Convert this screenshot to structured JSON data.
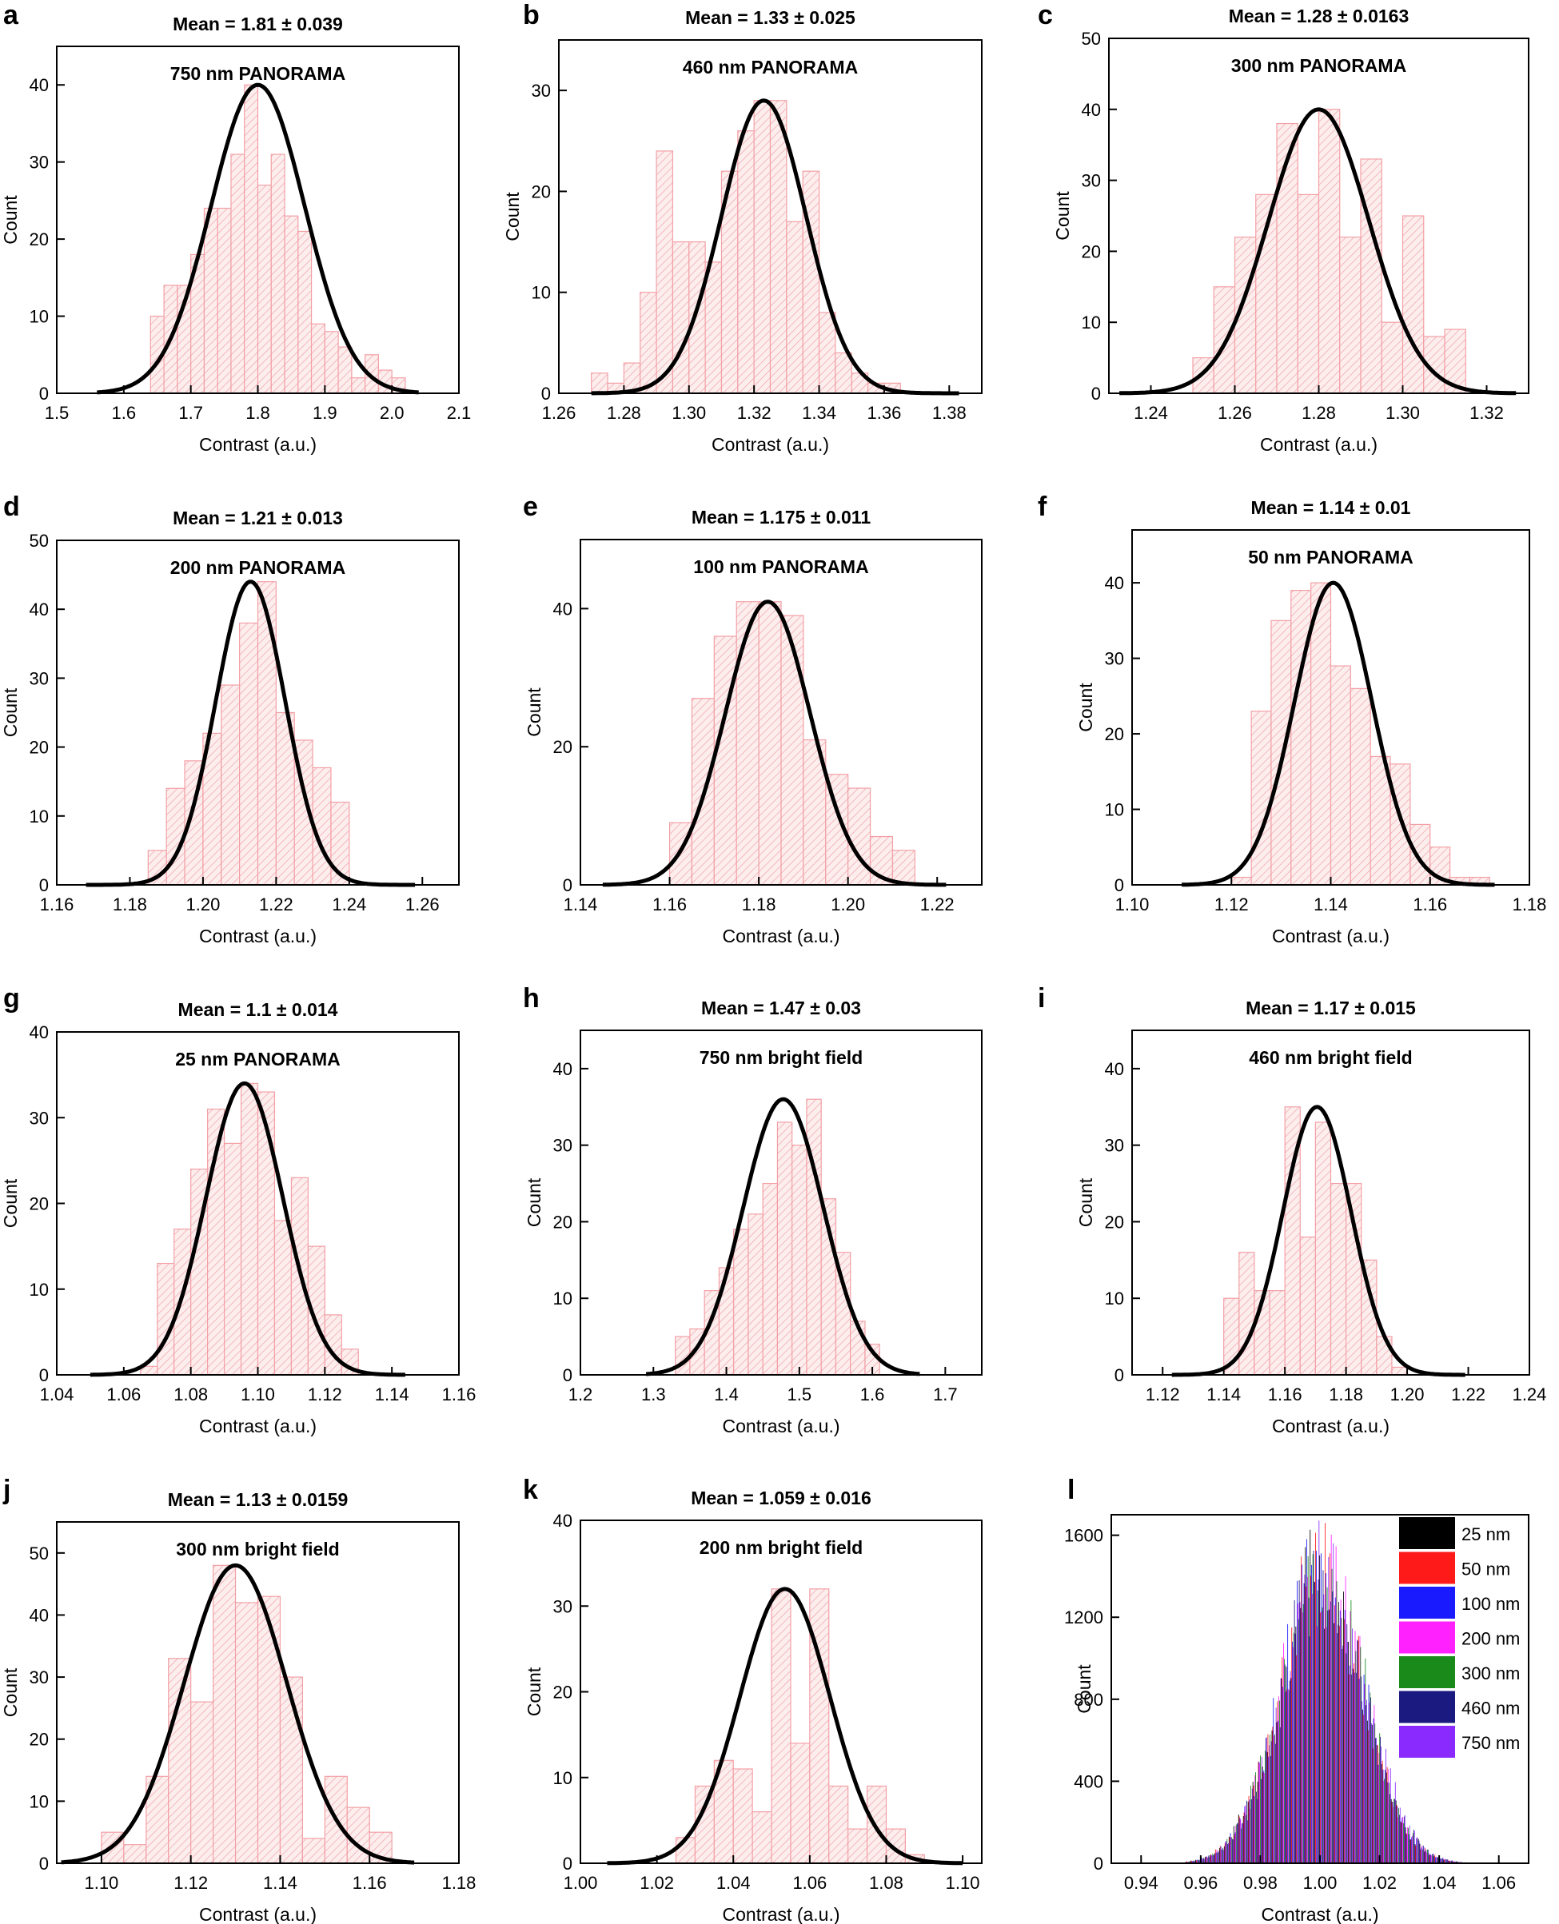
{
  "colors": {
    "bars": "#f2a0a6",
    "hatch": "#f0a0a8",
    "curve": "#000000",
    "axis": "#000000"
  },
  "chart_data": [
    {
      "id": "a",
      "panel_label": "a",
      "type": "bar",
      "title": "Mean = 1.81 ± 0.039",
      "subtitle": "750 nm PANORAMA",
      "xlabel": "Contrast (a.u.)",
      "ylabel": "Count",
      "xlim": [
        1.5,
        2.1
      ],
      "ylim": [
        0,
        45
      ],
      "xticks": [
        1.5,
        1.6,
        1.7,
        1.8,
        1.9,
        2.0,
        2.1
      ],
      "yticks": [
        0,
        10,
        20,
        30,
        40
      ],
      "bin_width": 0.02,
      "bin_centers": [
        1.65,
        1.67,
        1.69,
        1.71,
        1.73,
        1.75,
        1.77,
        1.79,
        1.81,
        1.83,
        1.85,
        1.87,
        1.89,
        1.91,
        1.93,
        1.95,
        1.97,
        1.99,
        2.01
      ],
      "values": [
        10,
        14,
        14,
        18,
        24,
        24,
        31,
        40,
        27,
        31,
        23,
        21,
        9,
        8,
        6,
        2,
        5,
        3,
        2
      ],
      "fit": {
        "mean": 1.8,
        "amplitude": 40,
        "sigma": 0.07,
        "xmin": 1.56,
        "xmax": 2.04
      }
    },
    {
      "id": "b",
      "panel_label": "b",
      "type": "bar",
      "title": "Mean = 1.33 ± 0.025",
      "subtitle": "460 nm PANORAMA",
      "xlabel": "Contrast (a.u.)",
      "ylabel": "Count",
      "xlim": [
        1.26,
        1.39
      ],
      "ylim": [
        0,
        35
      ],
      "xticks": [
        1.26,
        1.28,
        1.3,
        1.32,
        1.34,
        1.36,
        1.38
      ],
      "yticks": [
        0,
        10,
        20,
        30
      ],
      "bin_width": 0.005,
      "bin_centers": [
        1.2725,
        1.2775,
        1.2825,
        1.2875,
        1.2925,
        1.2975,
        1.3025,
        1.3075,
        1.3125,
        1.3175,
        1.3225,
        1.3275,
        1.3325,
        1.3375,
        1.3425,
        1.3475,
        1.3525,
        1.3575,
        1.3625
      ],
      "values": [
        2,
        1,
        3,
        10,
        24,
        15,
        15,
        13,
        22,
        26,
        29,
        29,
        17,
        22,
        8,
        4,
        2,
        1,
        1
      ],
      "fit": {
        "mean": 1.323,
        "amplitude": 29,
        "sigma": 0.013,
        "xmin": 1.27,
        "xmax": 1.383
      }
    },
    {
      "id": "c",
      "panel_label": "c",
      "type": "bar",
      "title": "Mean = 1.28 ± 0.0163",
      "subtitle": "300 nm PANORAMA",
      "xlabel": "Contrast (a.u.)",
      "ylabel": "Count",
      "xlim": [
        1.23,
        1.33
      ],
      "ylim": [
        0,
        50
      ],
      "xticks": [
        1.24,
        1.26,
        1.28,
        1.3,
        1.32
      ],
      "yticks": [
        0,
        10,
        20,
        30,
        40,
        50
      ],
      "bin_width": 0.005,
      "bin_centers": [
        1.2525,
        1.2575,
        1.2625,
        1.2675,
        1.2725,
        1.2775,
        1.2825,
        1.2875,
        1.2925,
        1.2975,
        1.3025,
        1.3075,
        1.3125
      ],
      "values": [
        5,
        15,
        22,
        28,
        38,
        28,
        40,
        22,
        33,
        10,
        25,
        8,
        9
      ],
      "fit": {
        "mean": 1.28,
        "amplitude": 40,
        "sigma": 0.012,
        "xmin": 1.2325,
        "xmax": 1.327
      }
    },
    {
      "id": "d",
      "panel_label": "d",
      "type": "bar",
      "title": "Mean = 1.21 ± 0.013",
      "subtitle": "200 nm PANORAMA",
      "xlabel": "Contrast (a.u.)",
      "ylabel": "Count",
      "xlim": [
        1.16,
        1.27
      ],
      "ylim": [
        0,
        50
      ],
      "xticks": [
        1.16,
        1.18,
        1.2,
        1.22,
        1.24,
        1.26
      ],
      "yticks": [
        0,
        10,
        20,
        30,
        40,
        50
      ],
      "bin_width": 0.005,
      "bin_centers": [
        1.1875,
        1.1925,
        1.1975,
        1.2025,
        1.2075,
        1.2125,
        1.2175,
        1.2225,
        1.2275,
        1.2325,
        1.2375
      ],
      "values": [
        5,
        14,
        18,
        22,
        29,
        38,
        44,
        25,
        21,
        17,
        12
      ],
      "fit": {
        "mean": 1.213,
        "amplitude": 44,
        "sigma": 0.0095,
        "xmin": 1.168,
        "xmax": 1.258
      }
    },
    {
      "id": "e",
      "panel_label": "e",
      "type": "bar",
      "title": "Mean = 1.175 ± 0.011",
      "subtitle": "100 nm PANORAMA",
      "xlabel": "Contrast (a.u.)",
      "ylabel": "Count",
      "xlim": [
        1.14,
        1.23
      ],
      "ylim": [
        0,
        50
      ],
      "xticks": [
        1.14,
        1.16,
        1.18,
        1.2,
        1.22
      ],
      "yticks": [
        0,
        20,
        40
      ],
      "bin_width": 0.005,
      "bin_centers": [
        1.1625,
        1.1675,
        1.1725,
        1.1775,
        1.1825,
        1.1875,
        1.1925,
        1.1975,
        1.2025,
        1.2075,
        1.2125
      ],
      "values": [
        9,
        27,
        36,
        41,
        41,
        39,
        21,
        16,
        14,
        7,
        5
      ],
      "fit": {
        "mean": 1.182,
        "amplitude": 41,
        "sigma": 0.0095,
        "xmin": 1.145,
        "xmax": 1.222
      }
    },
    {
      "id": "f",
      "panel_label": "f",
      "type": "bar",
      "title": "Mean = 1.14 ± 0.01",
      "subtitle": "50 nm PANORAMA",
      "xlabel": "Contrast (a.u.)",
      "ylabel": "Count",
      "xlim": [
        1.1,
        1.18
      ],
      "ylim": [
        0,
        47
      ],
      "xticks": [
        1.1,
        1.12,
        1.14,
        1.16,
        1.18
      ],
      "yticks": [
        0,
        10,
        20,
        30,
        40
      ],
      "bin_width": 0.004,
      "bin_centers": [
        1.122,
        1.126,
        1.13,
        1.134,
        1.138,
        1.142,
        1.146,
        1.15,
        1.154,
        1.158,
        1.162,
        1.166,
        1.17
      ],
      "values": [
        1,
        23,
        35,
        39,
        40,
        29,
        26,
        17,
        16,
        8,
        5,
        1,
        1
      ],
      "fit": {
        "mean": 1.1405,
        "amplitude": 40,
        "sigma": 0.0078,
        "xmin": 1.11,
        "xmax": 1.173
      }
    },
    {
      "id": "g",
      "panel_label": "g",
      "type": "bar",
      "title": "Mean = 1.1 ± 0.014",
      "subtitle": "25 nm PANORAMA",
      "xlabel": "Contrast (a.u.)",
      "ylabel": "Count",
      "xlim": [
        1.04,
        1.16
      ],
      "ylim": [
        0,
        40
      ],
      "xticks": [
        1.04,
        1.06,
        1.08,
        1.1,
        1.12,
        1.14,
        1.16
      ],
      "yticks": [
        0,
        10,
        20,
        30,
        40
      ],
      "bin_width": 0.005,
      "bin_centers": [
        1.0675,
        1.0725,
        1.0775,
        1.0825,
        1.0875,
        1.0925,
        1.0975,
        1.1025,
        1.1075,
        1.1125,
        1.1175,
        1.1225,
        1.1275
      ],
      "values": [
        1,
        13,
        17,
        24,
        31,
        27,
        34,
        33,
        18,
        23,
        15,
        7,
        3
      ],
      "fit": {
        "mean": 1.096,
        "amplitude": 34,
        "sigma": 0.0115,
        "xmin": 1.05,
        "xmax": 1.144
      }
    },
    {
      "id": "h",
      "panel_label": "h",
      "type": "bar",
      "title": "Mean = 1.47 ± 0.03",
      "subtitle": "750 nm bright field",
      "xlabel": "Contrast (a.u.)",
      "ylabel": "Count",
      "xlim": [
        1.2,
        1.75
      ],
      "ylim": [
        0,
        45
      ],
      "xticks": [
        1.2,
        1.3,
        1.4,
        1.5,
        1.6,
        1.7
      ],
      "yticks": [
        0,
        10,
        20,
        30,
        40
      ],
      "bin_width": 0.02,
      "bin_centers": [
        1.34,
        1.36,
        1.38,
        1.4,
        1.42,
        1.44,
        1.46,
        1.48,
        1.5,
        1.52,
        1.54,
        1.56,
        1.58,
        1.6
      ],
      "values": [
        5,
        6,
        11,
        14,
        19,
        21,
        25,
        33,
        30,
        36,
        23,
        16,
        7,
        4
      ],
      "fit": {
        "mean": 1.478,
        "amplitude": 36,
        "sigma": 0.055,
        "xmin": 1.29,
        "xmax": 1.665
      }
    },
    {
      "id": "i",
      "panel_label": "i",
      "type": "bar",
      "title": "Mean = 1.17 ± 0.015",
      "subtitle": "460 nm bright field",
      "xlabel": "Contrast (a.u.)",
      "ylabel": "Count",
      "xlim": [
        1.11,
        1.24
      ],
      "ylim": [
        0,
        45
      ],
      "xticks": [
        1.12,
        1.14,
        1.16,
        1.18,
        1.2,
        1.22,
        1.24
      ],
      "yticks": [
        0,
        10,
        20,
        30,
        40
      ],
      "bin_width": 0.005,
      "bin_centers": [
        1.1425,
        1.1475,
        1.1525,
        1.1575,
        1.1625,
        1.1675,
        1.1725,
        1.1775,
        1.1825,
        1.1875,
        1.1925,
        1.1975
      ],
      "values": [
        10,
        16,
        11,
        11,
        35,
        18,
        33,
        25,
        25,
        15,
        5,
        1
      ],
      "fit": {
        "mean": 1.1705,
        "amplitude": 35,
        "sigma": 0.0112,
        "xmin": 1.123,
        "xmax": 1.219
      }
    },
    {
      "id": "j",
      "panel_label": "j",
      "type": "bar",
      "title": "Mean = 1.13 ± 0.0159",
      "subtitle": "300 nm bright field",
      "xlabel": "Contrast (a.u.)",
      "ylabel": "Count",
      "xlim": [
        1.09,
        1.18
      ],
      "ylim": [
        0,
        55
      ],
      "xticks": [
        1.1,
        1.12,
        1.14,
        1.16,
        1.18
      ],
      "yticks": [
        0,
        10,
        20,
        30,
        40,
        50
      ],
      "bin_width": 0.005,
      "bin_centers": [
        1.1025,
        1.1075,
        1.1125,
        1.1175,
        1.1225,
        1.1275,
        1.1325,
        1.1375,
        1.1425,
        1.1475,
        1.1525,
        1.1575,
        1.1625
      ],
      "values": [
        5,
        3,
        14,
        33,
        26,
        48,
        42,
        43,
        30,
        4,
        14,
        9,
        5
      ],
      "fit": {
        "mean": 1.13,
        "amplitude": 48,
        "sigma": 0.0115,
        "xmin": 1.091,
        "xmax": 1.17
      }
    },
    {
      "id": "k",
      "panel_label": "k",
      "type": "bar",
      "title": "Mean = 1.059 ± 0.016",
      "subtitle": "200 nm bright field",
      "xlabel": "Contrast (a.u.)",
      "ylabel": "Count",
      "xlim": [
        1.0,
        1.105
      ],
      "ylim": [
        0,
        40
      ],
      "xticks": [
        1.0,
        1.02,
        1.04,
        1.06,
        1.08,
        1.1
      ],
      "yticks": [
        0,
        10,
        20,
        30,
        40
      ],
      "bin_width": 0.005,
      "bin_centers": [
        1.0275,
        1.0325,
        1.0375,
        1.0425,
        1.0475,
        1.0525,
        1.0575,
        1.0625,
        1.0675,
        1.0725,
        1.0775,
        1.0825,
        1.0875
      ],
      "values": [
        3,
        9,
        12,
        11,
        6,
        32,
        14,
        32,
        9,
        4,
        9,
        4,
        1
      ],
      "fit": {
        "mean": 1.0535,
        "amplitude": 32,
        "sigma": 0.0118,
        "xmin": 1.007,
        "xmax": 1.1
      }
    },
    {
      "id": "l",
      "panel_label": "l",
      "type": "bar",
      "subtitle": "",
      "xlabel": "Contrast (a.u.)",
      "ylabel": "Count",
      "xlim": [
        0.93,
        1.07
      ],
      "ylim": [
        0,
        1700
      ],
      "xticks": [
        0.94,
        0.96,
        0.98,
        1.0,
        1.02,
        1.04,
        1.06
      ],
      "yticks": [
        0,
        400,
        800,
        1200,
        1600
      ],
      "legend": {
        "placement": "top-right",
        "entries": [
          {
            "name": "25 nm",
            "color": "#000000"
          },
          {
            "name": "50 nm",
            "color": "#ff1a1a"
          },
          {
            "name": "100 nm",
            "color": "#1a1aff"
          },
          {
            "name": "200 nm",
            "color": "#ff22ff"
          },
          {
            "name": "300 nm",
            "color": "#1a8a1a"
          },
          {
            "name": "460 nm",
            "color": "#1a1a80"
          },
          {
            "name": "750 nm",
            "color": "#8a2aff"
          }
        ]
      },
      "overlay_center": 1.0,
      "overlay_sigma": 0.014,
      "overlay_peak": 1580,
      "overlay_span": [
        0.955,
        1.058
      ],
      "overlay_bin_width": 0.0016
    }
  ]
}
